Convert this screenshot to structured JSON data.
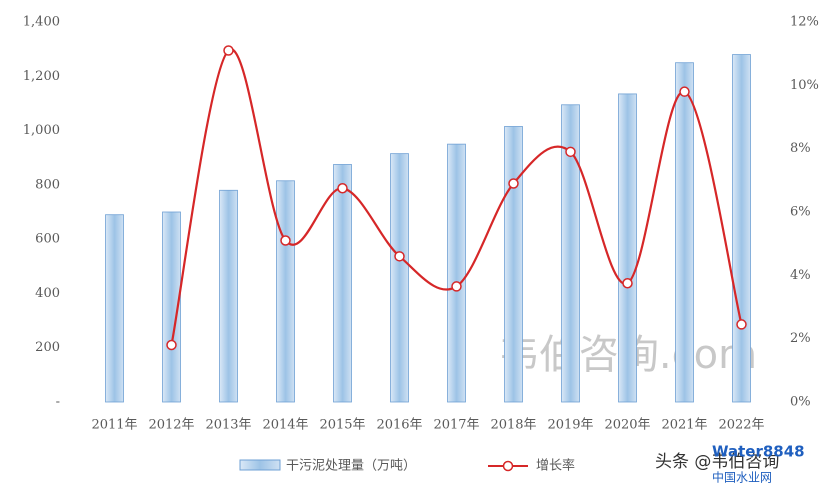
{
  "chart_data": {
    "type": "bar-line",
    "categories": [
      "2011年",
      "2012年",
      "2013年",
      "2014年",
      "2015年",
      "2016年",
      "2017年",
      "2018年",
      "2019年",
      "2020年",
      "2021年",
      "2022年"
    ],
    "series": [
      {
        "name": "干污泥处理量（万吨）",
        "type": "bar",
        "color": "#9dc3e6",
        "values": [
          690,
          700,
          780,
          815,
          875,
          915,
          950,
          1015,
          1095,
          1135,
          1250,
          1280
        ]
      },
      {
        "name": "增长率",
        "type": "line",
        "axis": "y2",
        "color": "#d62728",
        "values": [
          null,
          1.8,
          11.1,
          5.1,
          6.75,
          4.6,
          3.65,
          6.9,
          7.9,
          3.75,
          9.8,
          2.45
        ]
      }
    ],
    "ylim": [
      0,
      1400
    ],
    "yticks": [
      {
        "value": 0,
        "label": "-"
      },
      200,
      400,
      600,
      800,
      {
        "value": 1000,
        "label": "1,000"
      },
      {
        "value": 1200,
        "label": "1,200"
      },
      {
        "value": 1400,
        "label": "1,400"
      }
    ],
    "y2lim": [
      0,
      12
    ],
    "y2ticks": [
      {
        "value": 0,
        "label": "0%"
      },
      {
        "value": 2,
        "label": "2%"
      },
      {
        "value": 4,
        "label": "4%"
      },
      {
        "value": 6,
        "label": "6%"
      },
      {
        "value": 8,
        "label": "8%"
      },
      {
        "value": 10,
        "label": "10%"
      },
      {
        "value": 12,
        "label": "12%"
      }
    ],
    "legend": "bottom"
  },
  "watermarks": {
    "center": "韦伯咨询.com",
    "source": "头条 @韦伯咨询",
    "logo": "Water8848",
    "logo_sub": "中国水业网"
  }
}
